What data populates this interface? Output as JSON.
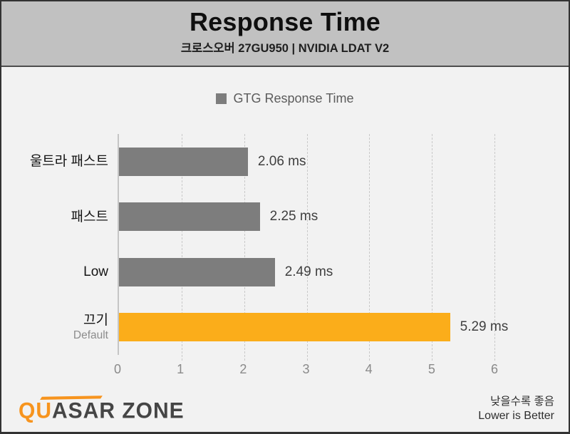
{
  "header": {
    "title": "Response Time",
    "subtitle": "크로스오버 27GU950  |  NVIDIA LDAT V2"
  },
  "legend": {
    "label": "GTG Response Time",
    "swatch_color": "#7d7d7d"
  },
  "chart_data": {
    "type": "bar",
    "orientation": "horizontal",
    "title": "Response Time",
    "subtitle": "크로스오버 27GU950 | NVIDIA LDAT V2",
    "legend": "GTG Response Time",
    "legend_position": "top-center",
    "categories": [
      "울트라 패스트",
      "패스트",
      "Low",
      "끄기"
    ],
    "category_sublabels": [
      "",
      "",
      "",
      "Default"
    ],
    "values": [
      2.06,
      2.25,
      2.49,
      5.29
    ],
    "value_labels": [
      "2.06 ms",
      "2.25 ms",
      "2.49 ms",
      "5.29 ms"
    ],
    "unit": "ms",
    "xlim": [
      0,
      6
    ],
    "xticks": [
      0,
      1,
      2,
      3,
      4,
      5,
      6
    ],
    "bar_colors": [
      "#7d7d7d",
      "#7d7d7d",
      "#7d7d7d",
      "#FBAD1A"
    ],
    "grid": "dashed-vertical",
    "lower_is_better": true
  },
  "footer": {
    "logo_primary": "QU",
    "logo_secondary": "ASAR ZONE",
    "note_korean": "낮을수록 좋음",
    "note_english": "Lower is Better"
  },
  "colors": {
    "header_bg": "#c1c1c1",
    "body_bg": "#f2f2f2",
    "bar_gray": "#7d7d7d",
    "accent_orange": "#FBAD1A",
    "frame_border": "#333333"
  }
}
